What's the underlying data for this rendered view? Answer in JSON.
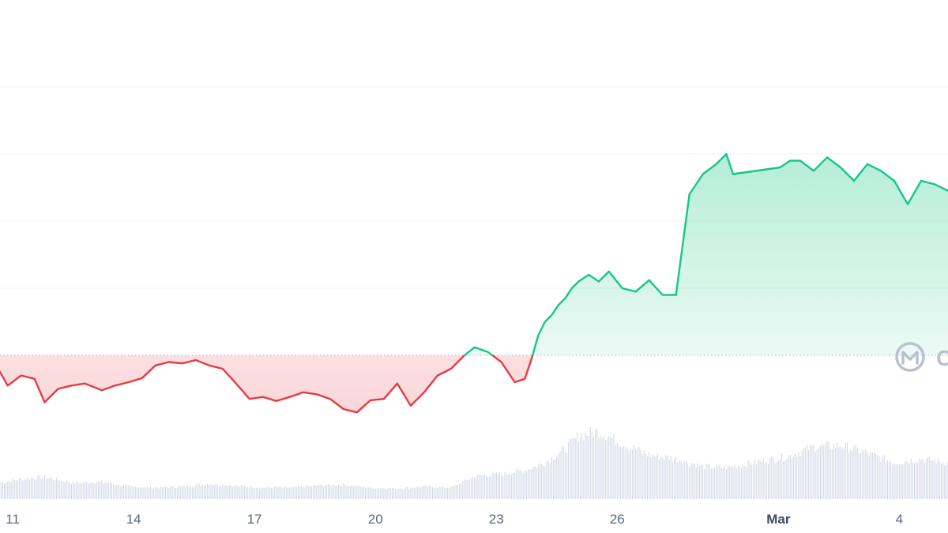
{
  "watermark": {
    "icon": "coinmarketcap-logo-icon",
    "text": "C"
  },
  "colors": {
    "up": "#16c784",
    "down": "#ea3943",
    "volume": "#cfd6e4",
    "grid": "#eff2f5",
    "baseline": "#a6b0c3",
    "tick_text": "#58667e"
  },
  "chart_data": {
    "type": "line",
    "title": "",
    "xlabel": "",
    "ylabel": "",
    "x_axis": {
      "type": "date",
      "tick_labels": [
        "11",
        "14",
        "17",
        "20",
        "23",
        "26",
        "Mar",
        "4"
      ],
      "domain": [
        "Feb 10 07:00",
        "Mar 5 05:00"
      ]
    },
    "y_axis": {
      "tick_labels": [],
      "note": "no y tick labels visible",
      "ylim": [
        0.9,
        1.4
      ]
    },
    "grid": true,
    "baseline": 1.0,
    "series": [
      {
        "kind": "price",
        "x": [
          "Feb 10 07:00",
          "Feb 10 13:00",
          "Feb 10 21:00",
          "Feb 11 05:00",
          "Feb 11 13:00",
          "Feb 11 19:00",
          "Feb 12 03:00",
          "Feb 12 11:00",
          "Feb 12 19:00",
          "Feb 13 05:00",
          "Feb 13 13:00",
          "Feb 13 21:00",
          "Feb 14 05:00",
          "Feb 14 13:00",
          "Feb 14 21:00",
          "Feb 15 05:00",
          "Feb 15 13:00",
          "Feb 15 21:00",
          "Feb 16 05:00",
          "Feb 16 13:00",
          "Feb 16 21:00",
          "Feb 17 05:00",
          "Feb 17 13:00",
          "Feb 17 21:00",
          "Feb 18 05:00",
          "Feb 18 13:00",
          "Feb 18 21:00",
          "Feb 19 05:00",
          "Feb 19 13:00",
          "Feb 19 21:00",
          "Feb 20 05:00",
          "Feb 20 13:00",
          "Feb 20 21:00",
          "Feb 21 05:00",
          "Feb 21 13:00",
          "Feb 21 21:00",
          "Feb 22 05:00",
          "Feb 22 11:00",
          "Feb 22 19:00",
          "Feb 23 03:00",
          "Feb 23 11:00",
          "Feb 23 17:00",
          "Feb 23 21:00",
          "Feb 24 01:00",
          "Feb 24 05:00",
          "Feb 24 09:00",
          "Feb 24 13:00",
          "Feb 24 17:00",
          "Feb 24 21:00",
          "Feb 25 01:00",
          "Feb 25 07:00",
          "Feb 25 13:00",
          "Feb 25 19:00",
          "Feb 26 03:00",
          "Feb 26 11:00",
          "Feb 26 19:00",
          "Feb 27 03:00",
          "Feb 27 11:00",
          "Feb 27 19:00",
          "Feb 28 03:00",
          "Feb 28 11:00",
          "Feb 28 17:00",
          "Feb 28 21:00",
          "Mar 1 01:00",
          "Mar 1 07:00",
          "Mar 1 13:00",
          "Mar 1 21:00",
          "Mar 2 05:00",
          "Mar 2 13:00",
          "Mar 2 21:00",
          "Mar 3 05:00",
          "Mar 3 13:00",
          "Mar 3 21:00",
          "Mar 4 05:00",
          "Mar 4 13:00",
          "Mar 4 21:00",
          "Mar 5 05:00"
        ],
        "values": [
          0.985,
          0.99,
          0.955,
          0.97,
          0.965,
          0.93,
          0.95,
          0.955,
          0.958,
          0.948,
          0.955,
          0.96,
          0.966,
          0.985,
          0.99,
          0.988,
          0.993,
          0.985,
          0.98,
          0.958,
          0.935,
          0.938,
          0.932,
          0.938,
          0.945,
          0.942,
          0.935,
          0.92,
          0.915,
          0.933,
          0.935,
          0.958,
          0.925,
          0.945,
          0.97,
          0.98,
          1.0,
          1.012,
          1.005,
          0.99,
          0.96,
          0.965,
          0.995,
          1.03,
          1.05,
          1.06,
          1.075,
          1.085,
          1.1,
          1.11,
          1.12,
          1.11,
          1.125,
          1.1,
          1.095,
          1.112,
          1.09,
          1.09,
          1.24,
          1.27,
          1.285,
          1.3,
          1.27,
          1.28,
          1.29,
          1.29,
          1.275,
          1.295,
          1.28,
          1.26,
          1.285,
          1.275,
          1.26,
          1.225,
          1.26,
          1.255,
          1.245
        ]
      },
      {
        "kind": "volume",
        "x": [
          "Feb 10 07:00",
          "Feb 11 05:00",
          "Feb 11 19:00",
          "Feb 12 11:00",
          "Feb 13 05:00",
          "Feb 13 21:00",
          "Feb 14 13:00",
          "Feb 15 05:00",
          "Feb 15 21:00",
          "Feb 16 13:00",
          "Feb 17 05:00",
          "Feb 17 21:00",
          "Feb 18 13:00",
          "Feb 19 05:00",
          "Feb 19 21:00",
          "Feb 20 13:00",
          "Feb 21 05:00",
          "Feb 21 21:00",
          "Feb 22 11:00",
          "Feb 23 03:00",
          "Feb 23 17:00",
          "Feb 24 05:00",
          "Feb 24 17:00",
          "Feb 25 01:00",
          "Feb 25 13:00",
          "Feb 26 03:00",
          "Feb 26 19:00",
          "Feb 27 11:00",
          "Feb 28 03:00",
          "Feb 28 17:00",
          "Mar 1 07:00",
          "Mar 1 21:00",
          "Mar 2 13:00",
          "Mar 3 05:00",
          "Mar 3 21:00",
          "Mar 4 13:00",
          "Mar 5 05:00"
        ],
        "values": [
          14,
          21,
          23,
          17,
          18,
          13,
          12,
          13,
          16,
          14,
          12,
          12,
          14,
          15,
          12,
          11,
          13,
          12,
          24,
          26,
          30,
          38,
          52,
          66,
          71,
          58,
          46,
          42,
          34,
          33,
          45,
          55,
          56,
          48,
          38,
          42,
          38
        ]
      }
    ]
  }
}
